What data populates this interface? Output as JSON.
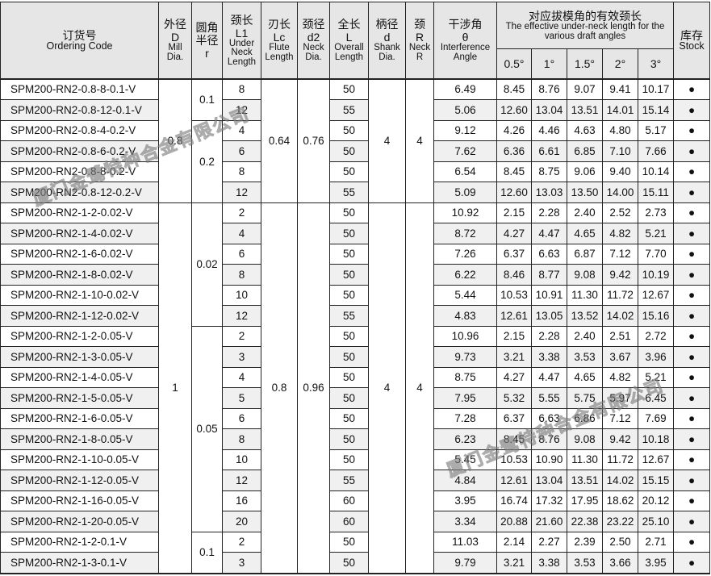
{
  "header": {
    "code": {
      "cn": "订货号",
      "en": "Ordering Code"
    },
    "D": {
      "cn": "外径",
      "sym": "D",
      "en": "Mill Dia."
    },
    "r": {
      "cn": "圆角半径",
      "sym": "r"
    },
    "L1": {
      "cn": "颈长",
      "sym": "L1",
      "en": "Under Neck Length"
    },
    "Lc": {
      "cn": "刃长",
      "sym": "Lc",
      "en": "Flute Length"
    },
    "d2": {
      "cn": "颈径",
      "sym": "d2",
      "en": "Neck Dia."
    },
    "L": {
      "cn": "全长",
      "sym": "L",
      "en": "Overall Length"
    },
    "d": {
      "cn": "柄径",
      "sym": "d",
      "en": "Shank Dia."
    },
    "R": {
      "cn": "颈",
      "sym": "R",
      "en": "Neck R"
    },
    "theta": {
      "cn": "干涉角",
      "sym": "θ",
      "en": "Interference Angle"
    },
    "effective": {
      "cn": "对应拔模角的有效颈长",
      "en": "The effective under-neck length for the various draft angles"
    },
    "angles": [
      "0.5°",
      "1°",
      "1.5°",
      "2°",
      "3°"
    ],
    "stock": {
      "cn": "库存",
      "en": "Stock"
    }
  },
  "merged": {
    "D": [
      {
        "value": "0.8",
        "rows": 6
      },
      {
        "value": "1",
        "rows": 18
      }
    ],
    "r": [
      {
        "value": "0.1",
        "rows": 2
      },
      {
        "value": "0.2",
        "rows": 4
      },
      {
        "value": "0.02",
        "rows": 6
      },
      {
        "value": "0.05",
        "rows": 10
      },
      {
        "value": "0.1",
        "rows": 2
      }
    ],
    "Lc": [
      {
        "value": "0.64",
        "rows": 6
      },
      {
        "value": "0.8",
        "rows": 18
      }
    ],
    "d2": [
      {
        "value": "0.76",
        "rows": 6
      },
      {
        "value": "0.96",
        "rows": 18
      }
    ],
    "d": [
      {
        "value": "4",
        "rows": 6
      },
      {
        "value": "4",
        "rows": 18
      }
    ],
    "R": [
      {
        "value": "4",
        "rows": 6
      },
      {
        "value": "4",
        "rows": 18
      }
    ]
  },
  "rows": [
    {
      "code": "SPM200-RN2-0.8-8-0.1-V",
      "L1": "8",
      "L": "50",
      "theta": "6.49",
      "eff": [
        "8.45",
        "8.76",
        "9.07",
        "9.41",
        "10.17"
      ],
      "stock": "●"
    },
    {
      "code": "SPM200-RN2-0.8-12-0.1-V",
      "L1": "12",
      "L": "55",
      "theta": "5.06",
      "eff": [
        "12.60",
        "13.04",
        "13.51",
        "14.01",
        "15.14"
      ],
      "stock": "●"
    },
    {
      "code": "SPM200-RN2-0.8-4-0.2-V",
      "L1": "4",
      "L": "50",
      "theta": "9.12",
      "eff": [
        "4.26",
        "4.46",
        "4.63",
        "4.80",
        "5.17"
      ],
      "stock": "●"
    },
    {
      "code": "SPM200-RN2-0.8-6-0.2-V",
      "L1": "6",
      "L": "50",
      "theta": "7.62",
      "eff": [
        "6.36",
        "6.61",
        "6.85",
        "7.10",
        "7.66"
      ],
      "stock": "●"
    },
    {
      "code": "SPM200-RN2-0.8-8-0.2-V",
      "L1": "8",
      "L": "50",
      "theta": "6.54",
      "eff": [
        "8.45",
        "8.75",
        "9.06",
        "9.40",
        "10.14"
      ],
      "stock": "●"
    },
    {
      "code": "SPM200-RN2-0.8-12-0.2-V",
      "L1": "12",
      "L": "55",
      "theta": "5.09",
      "eff": [
        "12.60",
        "13.03",
        "13.50",
        "14.00",
        "15.11"
      ],
      "stock": "●"
    },
    {
      "code": "SPM200-RN2-1-2-0.02-V",
      "L1": "2",
      "L": "50",
      "theta": "10.92",
      "eff": [
        "2.15",
        "2.28",
        "2.40",
        "2.52",
        "2.73"
      ],
      "stock": "●"
    },
    {
      "code": "SPM200-RN2-1-4-0.02-V",
      "L1": "4",
      "L": "50",
      "theta": "8.72",
      "eff": [
        "4.27",
        "4.47",
        "4.65",
        "4.82",
        "5.21"
      ],
      "stock": "●"
    },
    {
      "code": "SPM200-RN2-1-6-0.02-V",
      "L1": "6",
      "L": "50",
      "theta": "7.26",
      "eff": [
        "6.37",
        "6.63",
        "6.87",
        "7.12",
        "7.70"
      ],
      "stock": "●"
    },
    {
      "code": "SPM200-RN2-1-8-0.02-V",
      "L1": "8",
      "L": "50",
      "theta": "6.22",
      "eff": [
        "8.46",
        "8.77",
        "9.08",
        "9.42",
        "10.19"
      ],
      "stock": "●"
    },
    {
      "code": "SPM200-RN2-1-10-0.02-V",
      "L1": "10",
      "L": "50",
      "theta": "5.44",
      "eff": [
        "10.53",
        "10.91",
        "11.30",
        "11.72",
        "12.67"
      ],
      "stock": "●"
    },
    {
      "code": "SPM200-RN2-1-12-0.02-V",
      "L1": "12",
      "L": "55",
      "theta": "4.83",
      "eff": [
        "12.61",
        "13.05",
        "13.52",
        "14.02",
        "15.16"
      ],
      "stock": "●"
    },
    {
      "code": "SPM200-RN2-1-2-0.05-V",
      "L1": "2",
      "L": "50",
      "theta": "10.96",
      "eff": [
        "2.15",
        "2.28",
        "2.40",
        "2.51",
        "2.72"
      ],
      "stock": "●"
    },
    {
      "code": "SPM200-RN2-1-3-0.05-V",
      "L1": "3",
      "L": "50",
      "theta": "9.73",
      "eff": [
        "3.21",
        "3.38",
        "3.53",
        "3.67",
        "3.96"
      ],
      "stock": "●"
    },
    {
      "code": "SPM200-RN2-1-4-0.05-V",
      "L1": "4",
      "L": "50",
      "theta": "8.75",
      "eff": [
        "4.27",
        "4.47",
        "4.65",
        "4.82",
        "5.21"
      ],
      "stock": "●"
    },
    {
      "code": "SPM200-RN2-1-5-0.05-V",
      "L1": "5",
      "L": "50",
      "theta": "7.95",
      "eff": [
        "5.32",
        "5.55",
        "5.75",
        "5.97",
        "6.45"
      ],
      "stock": "●"
    },
    {
      "code": "SPM200-RN2-1-6-0.05-V",
      "L1": "6",
      "L": "50",
      "theta": "7.28",
      "eff": [
        "6.37",
        "6.63",
        "6.86",
        "7.12",
        "7.69"
      ],
      "stock": "●"
    },
    {
      "code": "SPM200-RN2-1-8-0.05-V",
      "L1": "8",
      "L": "50",
      "theta": "6.23",
      "eff": [
        "8.45",
        "8.76",
        "9.08",
        "9.42",
        "10.18"
      ],
      "stock": "●"
    },
    {
      "code": "SPM200-RN2-1-10-0.05-V",
      "L1": "10",
      "L": "50",
      "theta": "5.45",
      "eff": [
        "10.53",
        "10.90",
        "11.30",
        "11.72",
        "12.67"
      ],
      "stock": "●"
    },
    {
      "code": "SPM200-RN2-1-12-0.05-V",
      "L1": "12",
      "L": "55",
      "theta": "4.84",
      "eff": [
        "12.61",
        "13.04",
        "13.51",
        "14.02",
        "15.15"
      ],
      "stock": "●"
    },
    {
      "code": "SPM200-RN2-1-16-0.05-V",
      "L1": "16",
      "L": "60",
      "theta": "3.95",
      "eff": [
        "16.74",
        "17.32",
        "17.95",
        "18.62",
        "20.12"
      ],
      "stock": "●"
    },
    {
      "code": "SPM200-RN2-1-20-0.05-V",
      "L1": "20",
      "L": "60",
      "theta": "3.34",
      "eff": [
        "20.88",
        "21.60",
        "22.38",
        "23.22",
        "25.10"
      ],
      "stock": "●"
    },
    {
      "code": "SPM200-RN2-1-2-0.1-V",
      "L1": "2",
      "L": "50",
      "theta": "11.03",
      "eff": [
        "2.14",
        "2.27",
        "2.39",
        "2.50",
        "2.71"
      ],
      "stock": "●"
    },
    {
      "code": "SPM200-RN2-1-3-0.1-V",
      "L1": "3",
      "L": "50",
      "theta": "9.79",
      "eff": [
        "3.21",
        "3.38",
        "3.53",
        "3.66",
        "3.95"
      ],
      "stock": "●"
    }
  ],
  "watermark": "厦门金鹭特种合金有限公司"
}
